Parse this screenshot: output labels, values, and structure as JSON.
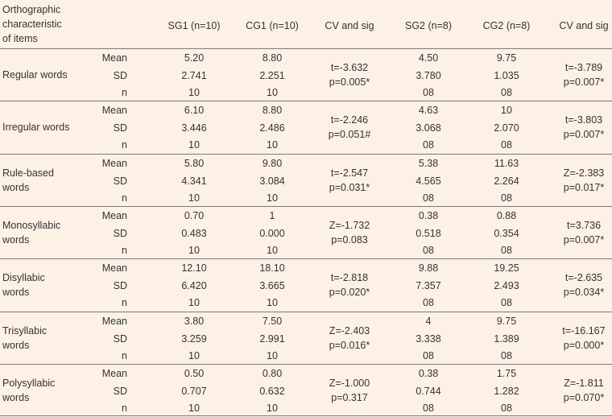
{
  "header": {
    "item_lines": [
      "Orthographic",
      "characteristic",
      "of items"
    ],
    "columns": [
      "SG1 (n=10)",
      "CG1 (n=10)",
      "CV and sig",
      "SG2 (n=8)",
      "CG2 (n=8)",
      "CV and sig"
    ]
  },
  "stat_labels": [
    "Mean",
    "SD",
    "n"
  ],
  "groups": [
    {
      "label_lines": [
        "Regular words"
      ],
      "sg1": [
        "5.20",
        "2.741",
        "10"
      ],
      "cg1": [
        "8.80",
        "2.251",
        "10"
      ],
      "cv1": [
        "t=-3.632",
        "p=0.005*"
      ],
      "sg2": [
        "4.50",
        "3.780",
        "08"
      ],
      "cg2": [
        "9.75",
        "1.035",
        "08"
      ],
      "cv2": [
        "t=-3.789",
        "p=0.007*"
      ]
    },
    {
      "label_lines": [
        "Irregular words"
      ],
      "sg1": [
        "6.10",
        "3.446",
        "10"
      ],
      "cg1": [
        "8.80",
        "2.486",
        "10"
      ],
      "cv1": [
        "t=-2.246",
        "p=0.051#"
      ],
      "sg2": [
        "4.63",
        "3.068",
        "08"
      ],
      "cg2": [
        "10",
        "2.070",
        "08"
      ],
      "cv2": [
        "t=-3.803",
        "p=0.007*"
      ]
    },
    {
      "label_lines": [
        "Rule-based",
        "words"
      ],
      "sg1": [
        "5.80",
        "4.341",
        "10"
      ],
      "cg1": [
        "9.80",
        "3.084",
        "10"
      ],
      "cv1": [
        "t=-2.547",
        "p=0.031*"
      ],
      "sg2": [
        "5.38",
        "4.565",
        "08"
      ],
      "cg2": [
        "11.63",
        "2.264",
        "08"
      ],
      "cv2": [
        "Z=-2.383",
        "p=0.017*"
      ]
    },
    {
      "label_lines": [
        "Monosyllabic",
        "words"
      ],
      "sg1": [
        "0.70",
        "0.483",
        "10"
      ],
      "cg1": [
        "1",
        "0.000",
        "10"
      ],
      "cv1": [
        "Z=-1.732",
        "p=0.083"
      ],
      "sg2": [
        "0.38",
        "0.518",
        "08"
      ],
      "cg2": [
        "0.88",
        "0.354",
        "08"
      ],
      "cv2": [
        "t=3.736",
        "p=0.007*"
      ]
    },
    {
      "label_lines": [
        "Disyllabic",
        "words"
      ],
      "sg1": [
        "12.10",
        "6.420",
        "10"
      ],
      "cg1": [
        "18.10",
        "3.665",
        "10"
      ],
      "cv1": [
        "t=-2.818",
        "p=0.020*"
      ],
      "sg2": [
        "9.88",
        "7.357",
        "08"
      ],
      "cg2": [
        "19.25",
        "2.493",
        "08"
      ],
      "cv2": [
        "t=-2.635",
        "p=0.034*"
      ]
    },
    {
      "label_lines": [
        "Trisyllabic",
        "words"
      ],
      "sg1": [
        "3.80",
        "3.259",
        "10"
      ],
      "cg1": [
        "7.50",
        "2.991",
        "10"
      ],
      "cv1": [
        "Z=-2.403",
        "p=0.016*"
      ],
      "sg2": [
        "4",
        "3.338",
        "08"
      ],
      "cg2": [
        "9.75",
        "1.389",
        "08"
      ],
      "cv2": [
        "t=-16.167",
        "p=0.000*"
      ]
    },
    {
      "label_lines": [
        "Polysyllabic",
        "words"
      ],
      "sg1": [
        "0.50",
        "0.707",
        "10"
      ],
      "cg1": [
        "0.80",
        "0.632",
        "10"
      ],
      "cv1": [
        "Z=-1.000",
        "p=0.317"
      ],
      "sg2": [
        "0.38",
        "0.744",
        "08"
      ],
      "cg2": [
        "1.75",
        "1.282",
        "08"
      ],
      "cv2": [
        "Z=-1.811",
        "p=0.070*"
      ]
    }
  ]
}
